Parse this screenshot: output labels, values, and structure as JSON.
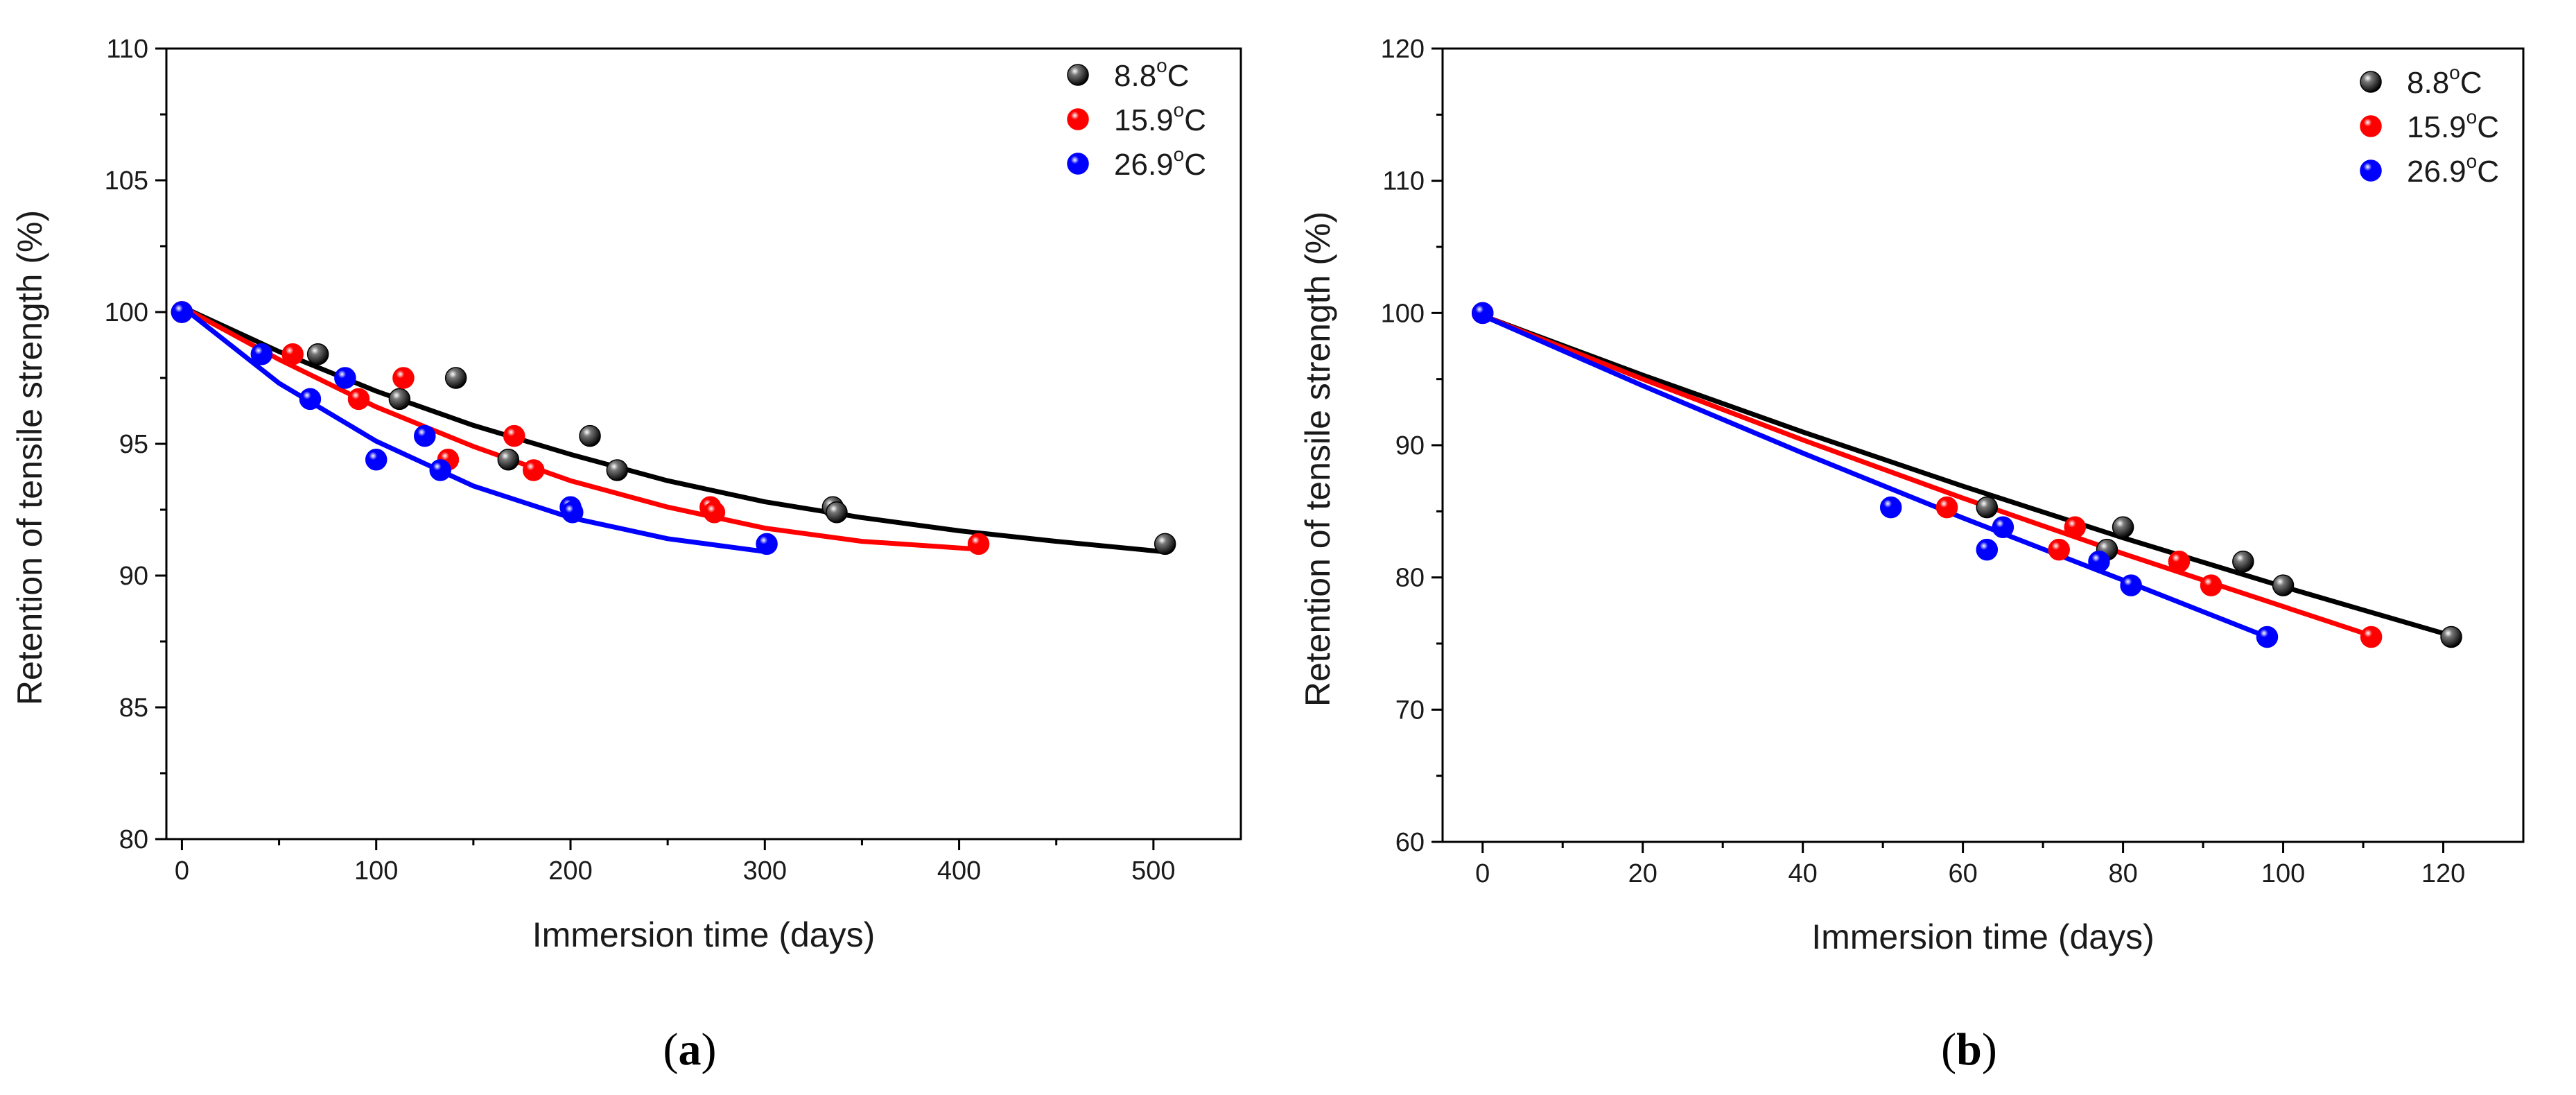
{
  "chart_data": [
    {
      "type": "scatter",
      "panel_label": {
        "open": "(",
        "letter": "a",
        "close": ")"
      },
      "xlabel": "Immersion time (days)",
      "ylabel": "Retention of tensile strength (%)",
      "xlim": [
        -8,
        545
      ],
      "ylim": [
        80,
        110
      ],
      "xticks": [
        0,
        100,
        200,
        300,
        400,
        500
      ],
      "yticks": [
        80,
        85,
        90,
        95,
        100,
        105,
        110
      ],
      "legend_position": "top-right",
      "series": [
        {
          "name": "8.8",
          "unit_sup": "o",
          "unit": "C",
          "color": "#000000",
          "points": [
            [
              0,
              100
            ],
            [
              70,
              98.4
            ],
            [
              112,
              96.7
            ],
            [
              141,
              97.5
            ],
            [
              168,
              94.4
            ],
            [
              210,
              95.3
            ],
            [
              224,
              94.0
            ],
            [
              335,
              92.6
            ],
            [
              337,
              92.4
            ],
            [
              506,
              91.2
            ]
          ],
          "fit": [
            [
              0,
              100.2
            ],
            [
              50,
              98.5
            ],
            [
              100,
              97.0
            ],
            [
              150,
              95.7
            ],
            [
              200,
              94.6
            ],
            [
              250,
              93.6
            ],
            [
              300,
              92.8
            ],
            [
              350,
              92.2
            ],
            [
              400,
              91.7
            ],
            [
              450,
              91.3
            ],
            [
              506,
              90.9
            ]
          ]
        },
        {
          "name": "15.9",
          "unit_sup": "o",
          "unit": "C",
          "color": "#ff0000",
          "points": [
            [
              0,
              100
            ],
            [
              57,
              98.4
            ],
            [
              91,
              96.7
            ],
            [
              114,
              97.5
            ],
            [
              137,
              94.4
            ],
            [
              171,
              95.3
            ],
            [
              181,
              94.0
            ],
            [
              272,
              92.6
            ],
            [
              274,
              92.4
            ],
            [
              410,
              91.2
            ]
          ],
          "fit": [
            [
              0,
              100.2
            ],
            [
              50,
              98.2
            ],
            [
              100,
              96.4
            ],
            [
              150,
              94.9
            ],
            [
              200,
              93.6
            ],
            [
              250,
              92.6
            ],
            [
              300,
              91.8
            ],
            [
              350,
              91.3
            ],
            [
              410,
              91.0
            ]
          ]
        },
        {
          "name": "26.9",
          "unit_sup": "o",
          "unit": "C",
          "color": "#0000ff",
          "points": [
            [
              0,
              100
            ],
            [
              41,
              98.4
            ],
            [
              66,
              96.7
            ],
            [
              84,
              97.5
            ],
            [
              100,
              94.4
            ],
            [
              125,
              95.3
            ],
            [
              133,
              94.0
            ],
            [
              200,
              92.6
            ],
            [
              201,
              92.4
            ],
            [
              301,
              91.2
            ]
          ],
          "fit": [
            [
              0,
              100.2
            ],
            [
              50,
              97.3
            ],
            [
              100,
              95.1
            ],
            [
              150,
              93.4
            ],
            [
              200,
              92.2
            ],
            [
              250,
              91.4
            ],
            [
              301,
              90.9
            ]
          ]
        }
      ]
    },
    {
      "type": "scatter",
      "panel_label": {
        "open": "(",
        "letter": "b",
        "close": ")"
      },
      "xlabel": "Immersion time (days)",
      "ylabel": "Retention of tensile strength (%)",
      "xlim": [
        -5,
        130
      ],
      "ylim": [
        60,
        120
      ],
      "xticks": [
        0,
        20,
        40,
        60,
        80,
        100,
        120
      ],
      "yticks": [
        60,
        70,
        80,
        90,
        100,
        110,
        120
      ],
      "legend_position": "top-right",
      "series": [
        {
          "name": "8.8",
          "unit_sup": "o",
          "unit": "C",
          "color": "#000000",
          "points": [
            [
              0,
              100
            ],
            [
              63,
              85.3
            ],
            [
              78,
              82.1
            ],
            [
              80,
              83.8
            ],
            [
              95,
              81.2
            ],
            [
              100,
              79.4
            ],
            [
              121,
              75.5
            ]
          ],
          "fit": [
            [
              0,
              99.8
            ],
            [
              20,
              95.3
            ],
            [
              40,
              91.0
            ],
            [
              60,
              86.9
            ],
            [
              80,
              83.0
            ],
            [
              100,
              79.3
            ],
            [
              121,
              75.6
            ]
          ]
        },
        {
          "name": "15.9",
          "unit_sup": "o",
          "unit": "C",
          "color": "#ff0000",
          "points": [
            [
              0,
              100
            ],
            [
              58,
              85.3
            ],
            [
              72,
              82.1
            ],
            [
              74,
              83.8
            ],
            [
              87,
              81.2
            ],
            [
              91,
              79.4
            ],
            [
              111,
              75.5
            ]
          ],
          "fit": [
            [
              0,
              99.8
            ],
            [
              20,
              95.0
            ],
            [
              40,
              90.4
            ],
            [
              60,
              86.0
            ],
            [
              80,
              81.8
            ],
            [
              100,
              77.8
            ],
            [
              111,
              75.6
            ]
          ]
        },
        {
          "name": "26.9",
          "unit_sup": "o",
          "unit": "C",
          "color": "#0000ff",
          "points": [
            [
              0,
              100
            ],
            [
              51,
              85.3
            ],
            [
              63,
              82.1
            ],
            [
              65,
              83.8
            ],
            [
              77,
              81.2
            ],
            [
              81,
              79.4
            ],
            [
              98,
              75.5
            ]
          ],
          "fit": [
            [
              0,
              99.8
            ],
            [
              20,
              94.5
            ],
            [
              40,
              89.4
            ],
            [
              60,
              84.5
            ],
            [
              80,
              79.8
            ],
            [
              98,
              75.5
            ]
          ]
        }
      ]
    }
  ]
}
